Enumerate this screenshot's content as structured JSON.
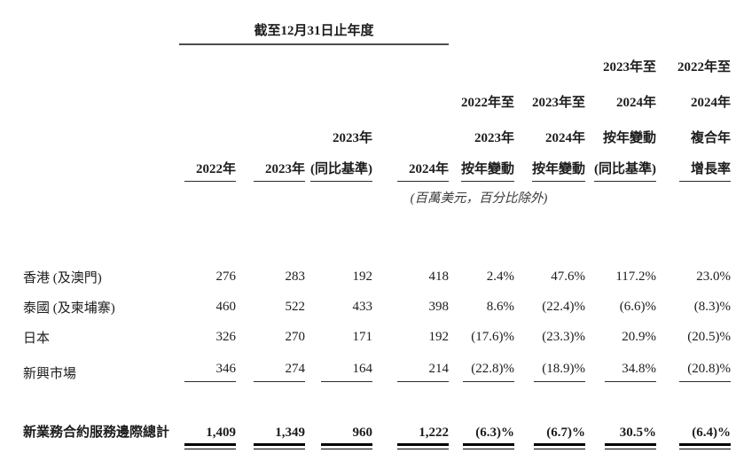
{
  "period_header": "截至12月31日止年度",
  "unit_note": "(百萬美元，百分比除外)",
  "columns": [
    {
      "lines": [
        "2022年"
      ]
    },
    {
      "lines": [
        "2023年"
      ]
    },
    {
      "lines": [
        "2023年",
        "(同比基準)"
      ]
    },
    {
      "lines": [
        "2024年"
      ]
    },
    {
      "lines": [
        "2022年至",
        "2023年",
        "按年變動"
      ]
    },
    {
      "lines": [
        "2023年至",
        "2024年",
        "按年變動"
      ]
    },
    {
      "lines": [
        "2023年至",
        "2024年",
        "按年變動",
        "(同比基準)"
      ]
    },
    {
      "lines": [
        "2022年至",
        "2024年",
        "複合年",
        "增長率"
      ]
    }
  ],
  "rows": [
    {
      "label": "香港 (及澳門)",
      "values": [
        "276",
        "283",
        "192",
        "418",
        "2.4%",
        "47.6%",
        "117.2%",
        "23.0%"
      ]
    },
    {
      "label": "泰國 (及柬埔寨)",
      "values": [
        "460",
        "522",
        "433",
        "398",
        "8.6%",
        "(22.4)%",
        "(6.6)%",
        "(8.3)%"
      ]
    },
    {
      "label": "日本",
      "values": [
        "326",
        "270",
        "171",
        "192",
        "(17.6)%",
        "(23.3)%",
        "20.9%",
        "(20.5)%"
      ]
    },
    {
      "label": "新興市場",
      "values": [
        "346",
        "274",
        "164",
        "214",
        "(22.8)%",
        "(18.9)%",
        "34.8%",
        "(20.8)%"
      ]
    }
  ],
  "total": {
    "label": "新業務合約服務邊際總計",
    "values": [
      "1,409",
      "1,349",
      "960",
      "1,222",
      "(6.3)%",
      "(6.7)%",
      "30.5%",
      "(6.4)%"
    ]
  },
  "colors": {
    "text": "#1c1c1c",
    "rule": "#000000",
    "title_rule": "#4d4d4d"
  }
}
